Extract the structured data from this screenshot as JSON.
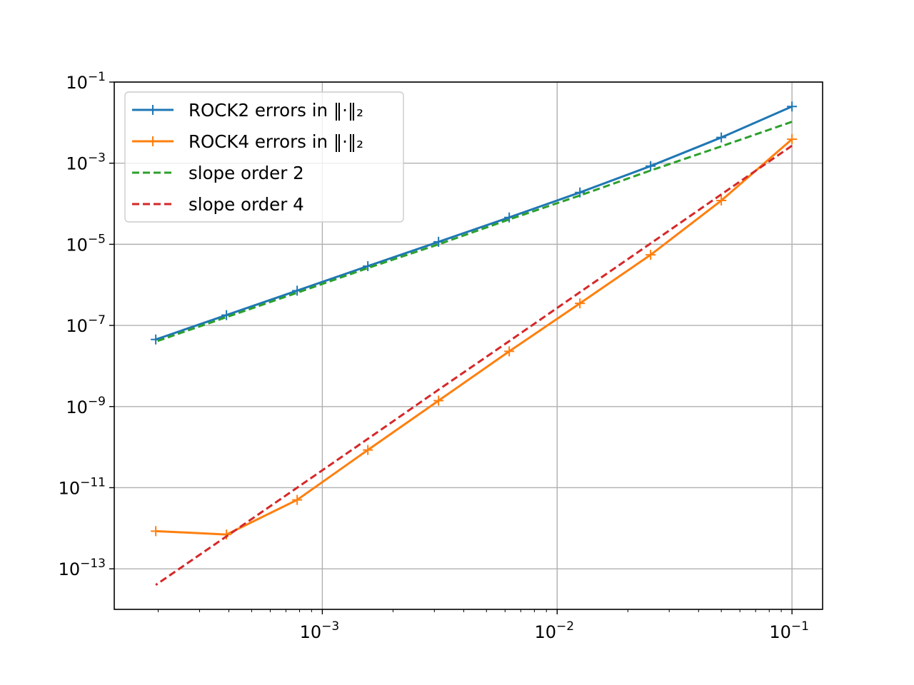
{
  "chart_data": {
    "type": "line",
    "xscale": "log",
    "yscale": "log",
    "xlim": [
      0.00013,
      0.135
    ],
    "ylim": [
      1e-14,
      0.1
    ],
    "grid": true,
    "legend_position": "top-left",
    "title": "",
    "xlabel": "",
    "ylabel": "",
    "x_major_ticks": [
      {
        "value": 0.001,
        "base": "10",
        "exp": "−3"
      },
      {
        "value": 0.01,
        "base": "10",
        "exp": "−2"
      },
      {
        "value": 0.1,
        "base": "10",
        "exp": "−1"
      }
    ],
    "y_major_ticks": [
      {
        "value": 0.1,
        "base": "10",
        "exp": "−1"
      },
      {
        "value": 0.001,
        "base": "10",
        "exp": "−3"
      },
      {
        "value": 1e-05,
        "base": "10",
        "exp": "−5"
      },
      {
        "value": 1e-07,
        "base": "10",
        "exp": "−7"
      },
      {
        "value": 1e-09,
        "base": "10",
        "exp": "−9"
      },
      {
        "value": 1e-11,
        "base": "10",
        "exp": "−11"
      },
      {
        "value": 1e-13,
        "base": "10",
        "exp": "−13"
      }
    ],
    "x": [
      0.1,
      0.05,
      0.025,
      0.0125,
      0.00625,
      0.003125,
      0.0015625,
      0.00078125,
      0.000390625,
      0.0001953125
    ],
    "series": [
      {
        "name": "ROCK2 errors in ‖·‖₂",
        "color": "#1f77b4",
        "style": "solid",
        "marker": "plus",
        "values": [
          0.025,
          0.0043,
          0.00085,
          0.00019,
          4.6e-05,
          1.15e-05,
          2.9e-06,
          7.2e-07,
          1.8e-07,
          4.5e-08
        ]
      },
      {
        "name": "ROCK4 errors in ‖·‖₂",
        "color": "#ff7f0e",
        "style": "solid",
        "marker": "plus",
        "values": [
          0.0039,
          0.00012,
          5.5e-06,
          3.5e-07,
          2.3e-08,
          1.4e-09,
          8.5e-11,
          5e-12,
          7e-13,
          8.5e-13
        ]
      },
      {
        "name": "slope order 2",
        "color": "#2ca02c",
        "style": "dashed",
        "marker": "none",
        "values": [
          0.0105,
          0.0026,
          0.00066,
          0.00016,
          4.1e-05,
          1e-05,
          2.6e-06,
          6.4e-07,
          1.6e-07,
          4e-08
        ]
      },
      {
        "name": "slope order 4",
        "color": "#d62728",
        "style": "dashed",
        "marker": "none",
        "values": [
          0.0027,
          0.00017,
          1.05e-05,
          6.6e-07,
          4.1e-08,
          2.6e-09,
          1.6e-10,
          1e-11,
          6.3e-13,
          4e-14
        ]
      }
    ]
  }
}
